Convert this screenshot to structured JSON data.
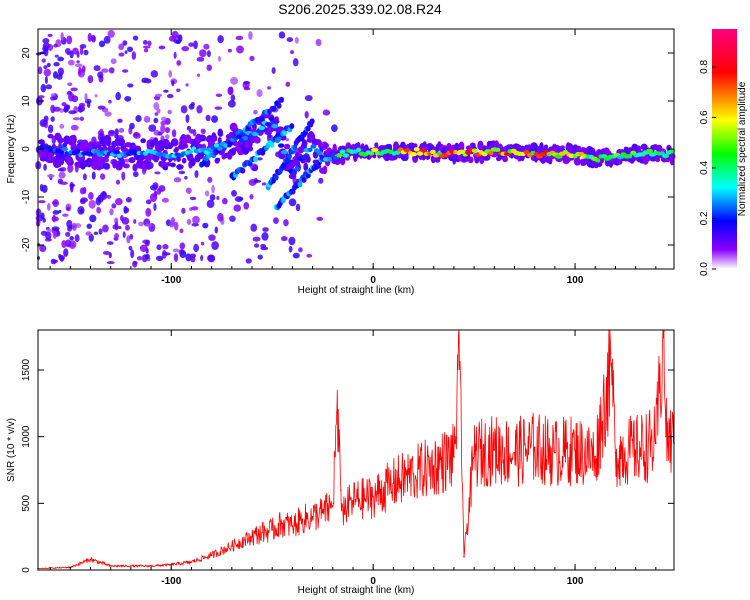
{
  "title": "S206.2025.339.02.08.R24",
  "chart_data": [
    {
      "type": "heatmap",
      "xlabel": "Height of straight line (km)",
      "ylabel": "Frequency (Hz)",
      "xlim": [
        -166,
        149
      ],
      "ylim": [
        -25,
        25
      ],
      "xticks": [
        -100,
        0,
        100
      ],
      "yticks": [
        -20,
        -10,
        0,
        10,
        20
      ],
      "colorbar": {
        "label": "Normalized spectral amplitude",
        "range": [
          0,
          0.95
        ],
        "ticks": [
          "0.0",
          "0.2",
          "0.4",
          "0.6",
          "0.8"
        ],
        "tick_values": [
          0.0,
          0.2,
          0.4,
          0.6,
          0.8
        ],
        "colors": [
          "#ffffff",
          "#8b00ff",
          "#0000ff",
          "#00ffff",
          "#00ff00",
          "#ffff00",
          "#ff0000",
          "#ff0080"
        ]
      },
      "ridge": [
        {
          "x": -160,
          "f": 0,
          "amp": 0.3
        },
        {
          "x": -140,
          "f": -1,
          "amp": 0.3
        },
        {
          "x": -120,
          "f": -1,
          "amp": 0.3
        },
        {
          "x": -100,
          "f": -1,
          "amp": 0.35
        },
        {
          "x": -80,
          "f": 0,
          "amp": 0.35
        },
        {
          "x": -60,
          "f": 3,
          "amp": 0.3
        },
        {
          "x": -50,
          "f": 6,
          "amp": 0.3
        },
        {
          "x": -40,
          "f": -5,
          "amp": 0.3
        },
        {
          "x": -30,
          "f": 1,
          "amp": 0.3
        },
        {
          "x": -25,
          "f": -2,
          "amp": 0.35
        },
        {
          "x": -15,
          "f": -1,
          "amp": 0.5
        },
        {
          "x": 0,
          "f": -0.5,
          "amp": 0.6
        },
        {
          "x": 20,
          "f": -0.5,
          "amp": 0.75
        },
        {
          "x": 40,
          "f": -1,
          "amp": 0.8
        },
        {
          "x": 60,
          "f": -0.5,
          "amp": 0.8
        },
        {
          "x": 80,
          "f": -1,
          "amp": 0.8
        },
        {
          "x": 100,
          "f": -1,
          "amp": 0.7
        },
        {
          "x": 110,
          "f": -2,
          "amp": 0.6
        },
        {
          "x": 130,
          "f": -1,
          "amp": 0.5
        },
        {
          "x": 149,
          "f": -1,
          "amp": 0.4
        }
      ]
    },
    {
      "type": "line",
      "color": "#ff0000",
      "xlabel": "Height of straight line (km)",
      "ylabel": "SNR (10 * v/v)",
      "xlim": [
        -166,
        149
      ],
      "ylim": [
        0,
        1800
      ],
      "xticks": [
        -100,
        0,
        100
      ],
      "yticks": [
        0,
        500,
        1000,
        1500
      ],
      "series": [
        {
          "name": "SNR",
          "x": [
            -166,
            -150,
            -140,
            -130,
            -120,
            -110,
            -100,
            -90,
            -80,
            -70,
            -60,
            -55,
            -50,
            -45,
            -40,
            -35,
            -30,
            -25,
            -20,
            -18,
            -16,
            -15,
            -10,
            0,
            10,
            20,
            30,
            40,
            43,
            45,
            50,
            60,
            70,
            80,
            90,
            100,
            110,
            118,
            120,
            130,
            140,
            144,
            145,
            149
          ],
          "y": [
            10,
            20,
            80,
            30,
            30,
            30,
            40,
            60,
            110,
            180,
            250,
            280,
            300,
            350,
            330,
            380,
            400,
            430,
            480,
            1180,
            600,
            450,
            520,
            550,
            650,
            720,
            780,
            850,
            1560,
            100,
            870,
            900,
            880,
            920,
            880,
            900,
            850,
            1550,
            880,
            900,
            950,
            1790,
            1000,
            950
          ]
        }
      ]
    }
  ]
}
